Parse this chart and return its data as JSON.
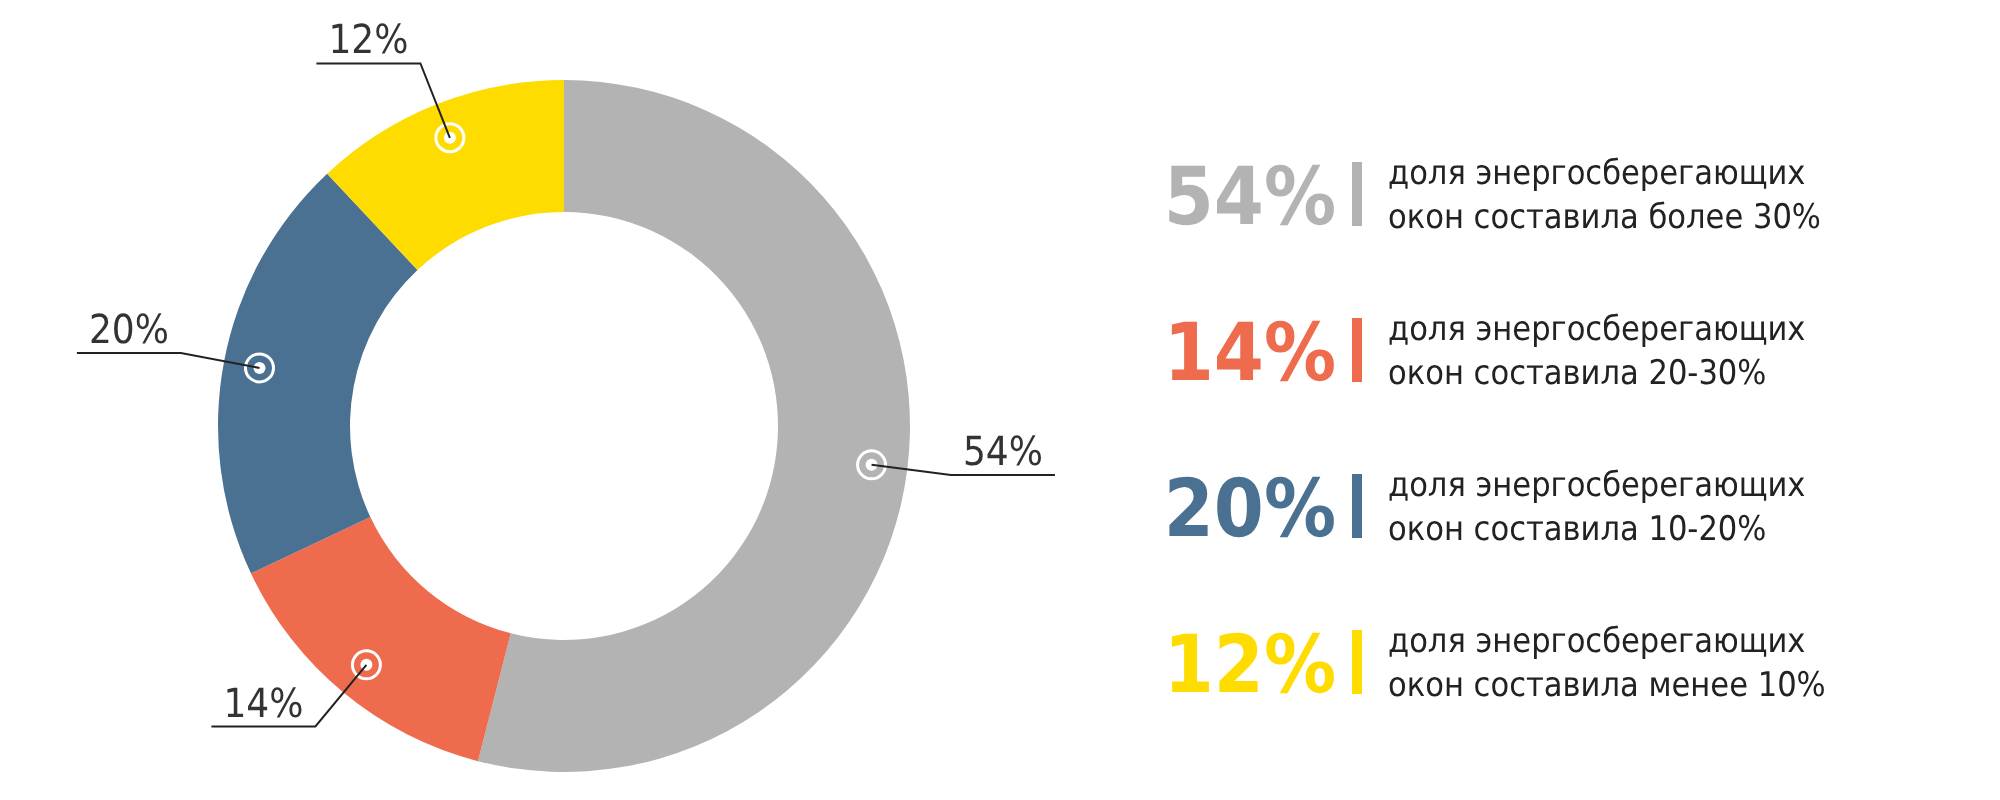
{
  "chart_data": {
    "type": "donut",
    "categories": [
      "доля энергосберегающих\nокон составила более 30%",
      "доля энергосберегающих\nокон составила 20-30%",
      "доля энергосберегающих\nокон составила 10-20%",
      "доля энергосберегающих\nокон составила менее 10%"
    ],
    "values": [
      54,
      14,
      20,
      12
    ],
    "colors": [
      "#b3b3b3",
      "#ee6b4d",
      "#4a7191",
      "#fedc00"
    ],
    "value_labels": [
      "54%",
      "14%",
      "20%",
      "12%"
    ],
    "legend": "right"
  }
}
